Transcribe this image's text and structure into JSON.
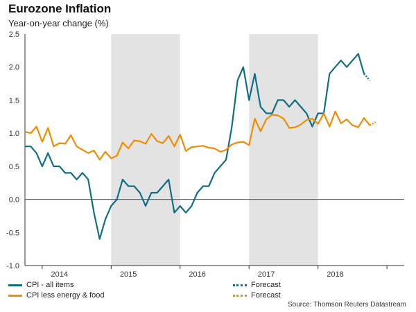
{
  "chart_data": {
    "type": "line",
    "title": "Eurozone Inflation",
    "subtitle": "Year-on-year change (%)",
    "ylim": [
      -1.0,
      2.5
    ],
    "yticks": [
      "2.5",
      "2.0",
      "1.5",
      "1.0",
      "0.5",
      "0.0",
      "-0.5",
      "-1.0"
    ],
    "ytick_values": [
      2.5,
      2.0,
      1.5,
      1.0,
      0.5,
      0.0,
      -0.5,
      -1.0
    ],
    "x_start": "2013-09",
    "x_end": "2019-03",
    "year_labels": [
      {
        "label": "2014",
        "month_index": 6
      },
      {
        "label": "2015",
        "month_index": 18
      },
      {
        "label": "2016",
        "month_index": 30
      },
      {
        "label": "2017",
        "month_index": 42
      },
      {
        "label": "2018",
        "month_index": 54
      }
    ],
    "shaded_ranges_month_index": [
      [
        15,
        27
      ],
      [
        39,
        51
      ]
    ],
    "series": [
      {
        "name": "CPI - all items",
        "color": "#0f6e83",
        "start_month_index": 0,
        "values": [
          0.8,
          0.8,
          0.7,
          0.5,
          0.7,
          0.5,
          0.5,
          0.4,
          0.4,
          0.3,
          0.4,
          0.3,
          -0.2,
          -0.6,
          -0.3,
          -0.1,
          0.0,
          0.3,
          0.2,
          0.2,
          0.1,
          -0.1,
          0.1,
          0.1,
          0.2,
          0.3,
          -0.2,
          -0.1,
          -0.2,
          -0.1,
          0.1,
          0.2,
          0.2,
          0.4,
          0.5,
          0.6,
          1.1,
          1.8,
          2.0,
          1.5,
          1.9,
          1.4,
          1.3,
          1.3,
          1.5,
          1.5,
          1.4,
          1.5,
          1.4,
          1.3,
          1.1,
          1.3,
          1.3,
          1.9,
          2.0,
          2.1,
          2.0,
          2.1,
          2.2,
          1.9
        ]
      },
      {
        "name": "CPI less energy & food",
        "color": "#f08c00",
        "start_month_index": 0,
        "values": [
          1.02,
          1.0,
          1.1,
          0.87,
          1.08,
          0.8,
          0.85,
          0.84,
          0.97,
          0.8,
          0.75,
          0.7,
          0.74,
          0.6,
          0.72,
          0.62,
          0.66,
          0.86,
          0.77,
          0.89,
          0.88,
          0.84,
          0.99,
          0.88,
          0.85,
          0.96,
          0.8,
          0.98,
          0.73,
          0.79,
          0.8,
          0.81,
          0.78,
          0.77,
          0.72,
          0.75,
          0.83,
          0.86,
          0.87,
          0.82,
          1.22,
          1.03,
          1.21,
          1.28,
          1.27,
          1.22,
          1.08,
          1.09,
          1.13,
          1.2,
          1.22,
          1.14,
          1.3,
          1.1,
          1.33,
          1.15,
          1.21,
          1.12,
          1.09,
          1.23,
          1.12
        ]
      }
    ],
    "forecast": [
      {
        "name": "Forecast",
        "color": "#0f6e83",
        "start_month_index": 59,
        "values": [
          1.9,
          1.8
        ]
      },
      {
        "name": "Forecast",
        "color": "#f08c00",
        "start_month_index": 60,
        "values": [
          1.12,
          1.17
        ]
      }
    ]
  },
  "legend": {
    "cpi_all": "CPI - all items",
    "cpi_core": "CPI less energy & food",
    "forecast_1": "Forecast",
    "forecast_2": "Forecast"
  },
  "source": "Source: Thomson Reuters Datastream"
}
